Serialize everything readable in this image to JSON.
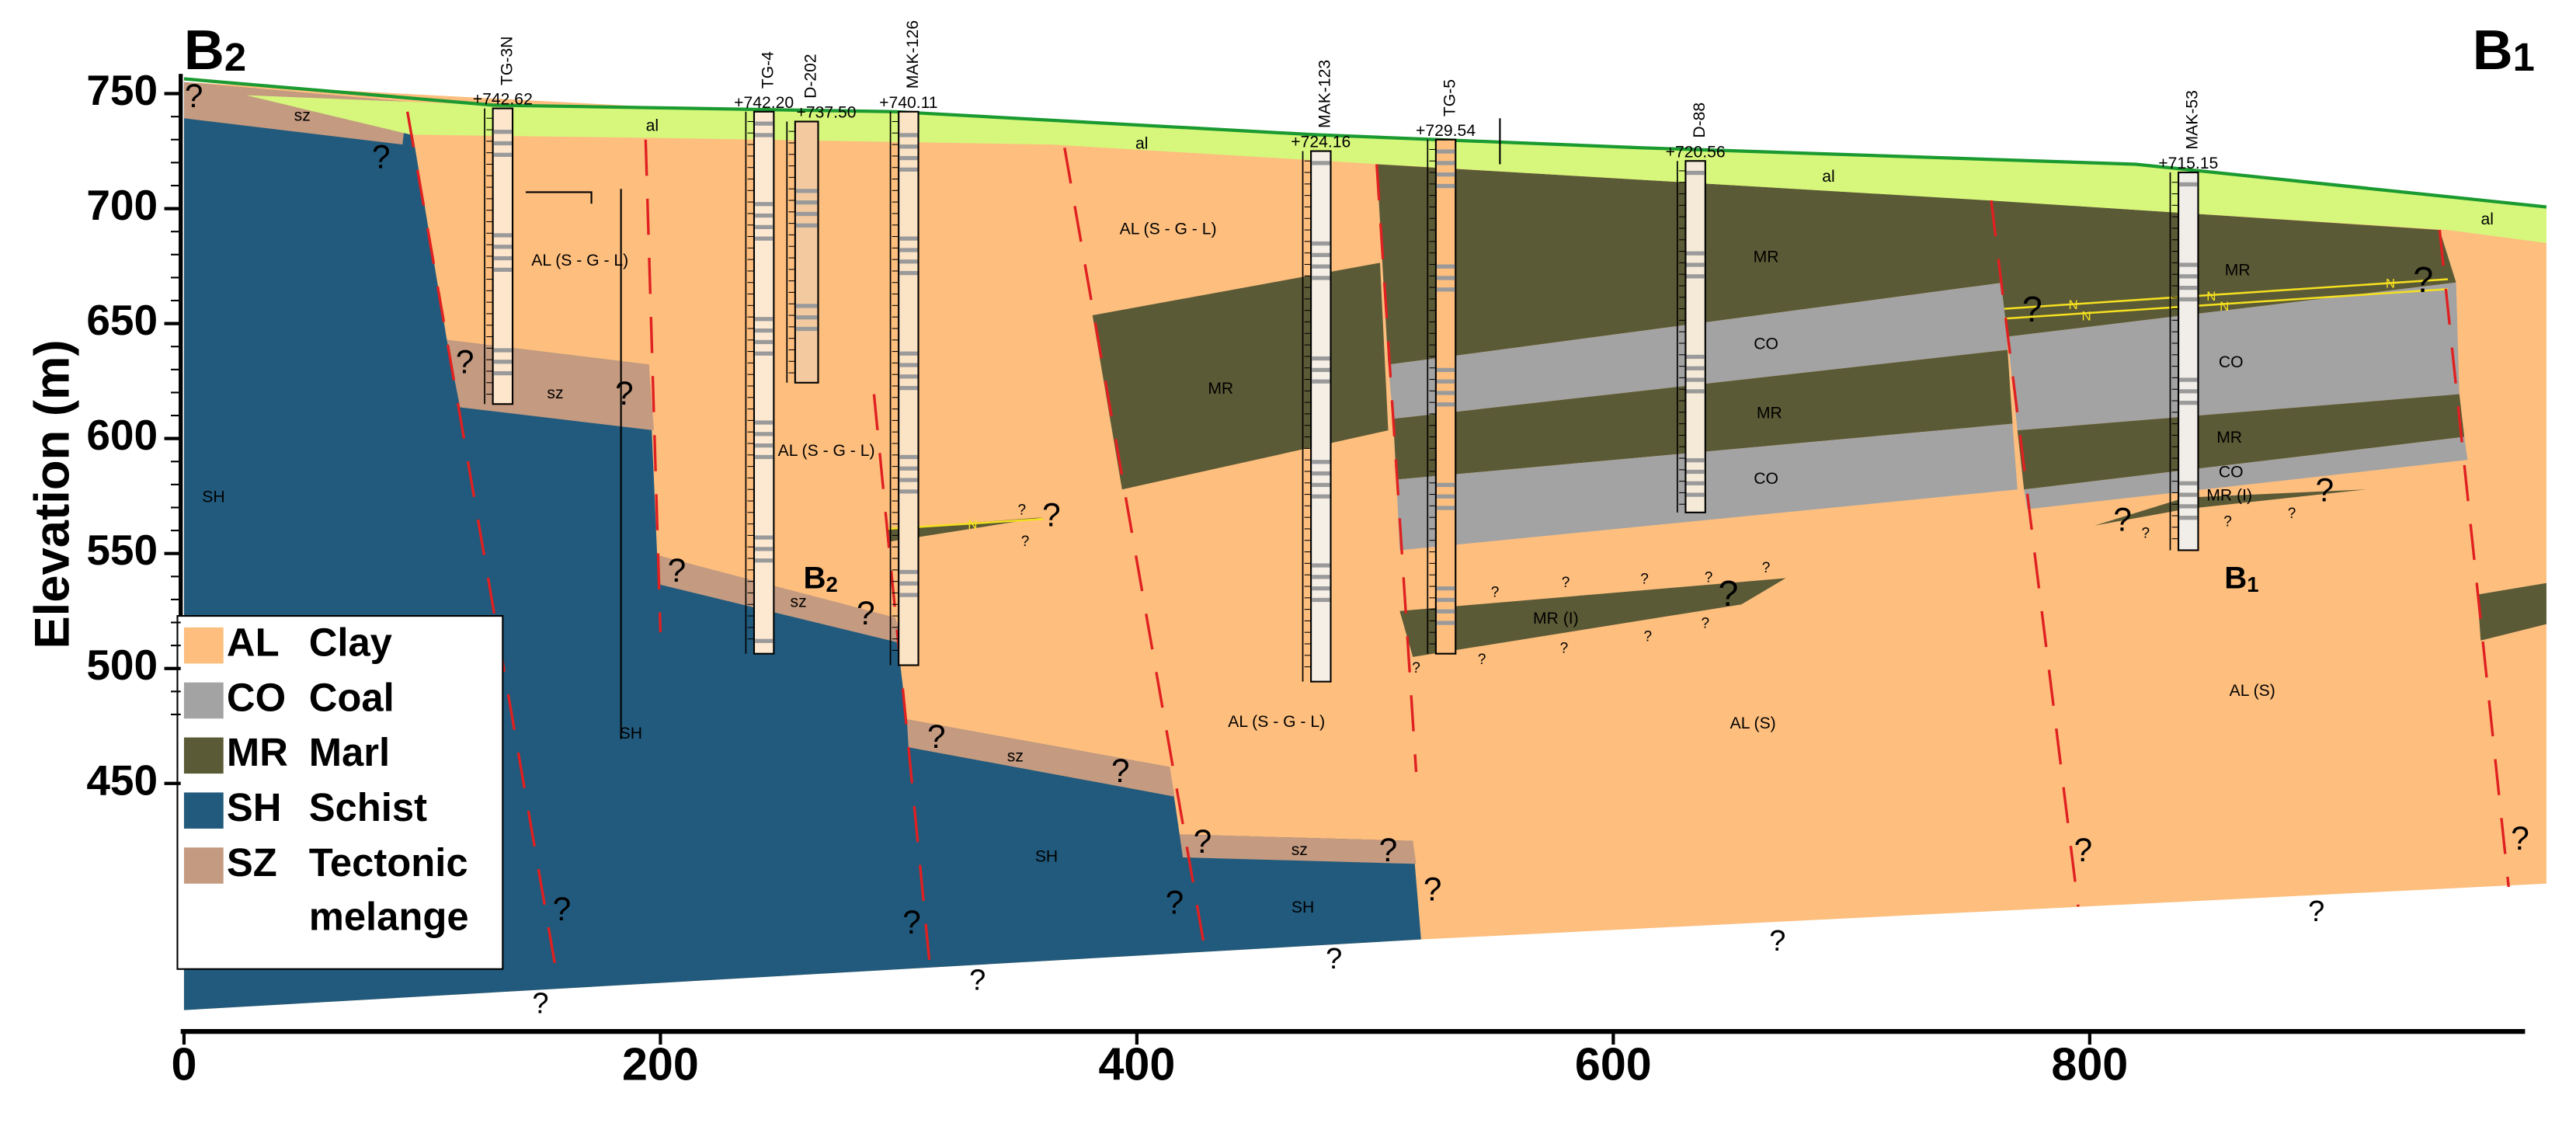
{
  "section": {
    "start": {
      "letter": "B",
      "subscript": "2"
    },
    "end": {
      "letter": "B",
      "subscript": "1"
    }
  },
  "axes": {
    "y_label": "Elevation (m)",
    "yticks": [
      450,
      500,
      550,
      600,
      650,
      700,
      750
    ],
    "xticks": [
      0,
      200,
      400,
      600,
      800
    ]
  },
  "legend": [
    {
      "code": "AL",
      "name_lines": [
        "Clay"
      ],
      "color": "#fdbe7e"
    },
    {
      "code": "CO",
      "name_lines": [
        "Coal"
      ],
      "color": "#a3a3a3"
    },
    {
      "code": "MR",
      "name_lines": [
        "Marl"
      ],
      "color": "#5b5a36"
    },
    {
      "code": "SH",
      "name_lines": [
        "Schist"
      ],
      "color": "#215a7c"
    },
    {
      "code": "SZ",
      "name_lines": [
        "Tectonic",
        "melange"
      ],
      "color": "#c49a80"
    }
  ],
  "alluvium_color": "#d6f77c",
  "boreholes": [
    {
      "name": "TG-3N",
      "elevation": "+742.62"
    },
    {
      "name": "TG-4",
      "elevation": "+742.20"
    },
    {
      "name": "D-202",
      "elevation": "+737.50"
    },
    {
      "name": "MAK-126",
      "elevation": "+740.11"
    },
    {
      "name": "MAK-123",
      "elevation": "+724.16"
    },
    {
      "name": "TG-5",
      "elevation": "+729.54"
    },
    {
      "name": "D-88",
      "elevation": "+720.56"
    },
    {
      "name": "MAK-53",
      "elevation": "+715.15"
    }
  ],
  "unit_labels": [
    "al",
    "al",
    "al",
    "al",
    "sz",
    "sz",
    "sz",
    "sz",
    "sz",
    "AL (S - G - L)",
    "AL (S - G - L)",
    "AL (S - G - L)",
    "AL (S - G - L)",
    "MR",
    "MR",
    "MR",
    "MR",
    "MR",
    "CO",
    "CO",
    "CO",
    "CO",
    "MR (I)",
    "MR (I)",
    "SH",
    "SH",
    "SH",
    "SH",
    "AL (S)",
    "AL (S)"
  ],
  "inner_markers": [
    {
      "letter": "B",
      "subscript": "2"
    },
    {
      "letter": "B",
      "subscript": "1"
    }
  ],
  "question_marks": [
    "?",
    "?",
    "?",
    "?",
    "?",
    "?",
    "?",
    "?",
    "?",
    "?",
    "?",
    "?",
    "?",
    "?",
    "?",
    "?",
    "?",
    "?",
    "?",
    "?",
    "?",
    "?",
    "?",
    "?",
    "?",
    "?",
    "?",
    "?",
    "?",
    "?",
    "?",
    "?",
    "?",
    "?",
    "?",
    "?",
    "?",
    "?",
    "?",
    "?",
    "?",
    "?"
  ],
  "n_markers": [
    "N",
    "N",
    "N",
    "N",
    "N",
    "N"
  ]
}
